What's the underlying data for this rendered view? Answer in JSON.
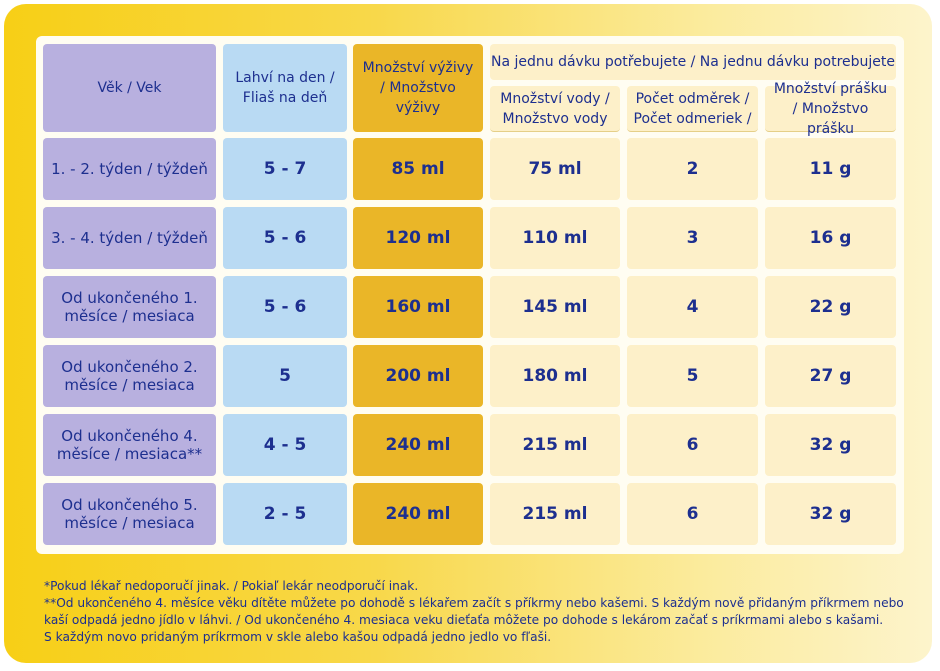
{
  "headers": {
    "age": "Věk / Vek",
    "bottles": "Lahví na den / Fliaš na deň",
    "amount": "Množství výživy / Množstvo výživy",
    "per_dose": "Na jednu dávku potřebujete / Na jednu dávku potrebujete",
    "water": "Množství vody / Množstvo vody",
    "scoops": "Počet odměrek / Počet odmeriek /",
    "powder": "Množství prášku / Množstvo prášku"
  },
  "rows": [
    {
      "age": "1. - 2. týden / týždeň",
      "bottles": "5 - 7",
      "amount": "85 ml",
      "water": "75 ml",
      "scoops": "2",
      "powder": "11 g"
    },
    {
      "age": "3. - 4. týden / týždeň",
      "bottles": "5 - 6",
      "amount": "120 ml",
      "water": "110 ml",
      "scoops": "3",
      "powder": "16 g"
    },
    {
      "age": "Od ukončeného 1. měsíce / mesiaca",
      "bottles": "5 - 6",
      "amount": "160 ml",
      "water": "145 ml",
      "scoops": "4",
      "powder": "22 g"
    },
    {
      "age": "Od ukončeného 2. měsíce / mesiaca",
      "bottles": "5",
      "amount": "200 ml",
      "water": "180 ml",
      "scoops": "5",
      "powder": "27 g"
    },
    {
      "age": "Od ukončeného 4. měsíce / mesiaca**",
      "bottles": "4 - 5",
      "amount": "240 ml",
      "water": "215 ml",
      "scoops": "6",
      "powder": "32 g"
    },
    {
      "age": "Od ukončeného 5. měsíce / mesiaca",
      "bottles": "2 - 5",
      "amount": "240 ml",
      "water": "215 ml",
      "scoops": "6",
      "powder": "32 g"
    }
  ],
  "notes": [
    "*Pokud lékař nedoporučí jinak. / Pokiaľ lekár neodporučí inak.",
    "**Od ukončeného 4. měsíce věku dítěte můžete po dohodě s lékařem začít s příkrmy nebo kašemi. S každým nově přidaným příkrmem nebo",
    "kaší odpadá jedno jídlo v láhvi. / Od ukončeného 4. mesiaca veku dieťaťa môžete po dohode s lekárom začať s príkrmami alebo s kašami.",
    "S každým novo pridaným príkrmom v skle alebo kašou odpadá jedno jedlo vo fľaši."
  ]
}
